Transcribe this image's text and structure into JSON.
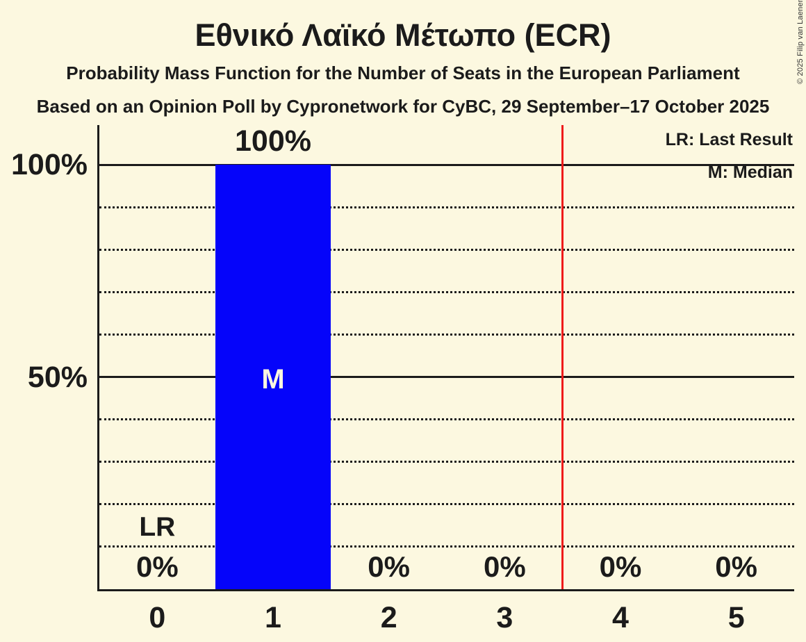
{
  "header": {
    "title": "Εθνικό Λαϊκό Μέτωπο (ECR)",
    "subtitle": "Probability Mass Function for the Number of Seats in the European Parliament",
    "source_line": "Based on an Opinion Poll by Cypronetwork for CyBC, 29 September–17 October 2025"
  },
  "copyright": "© 2025 Filip van Laenen",
  "legend": {
    "lr_label": "LR: Last Result",
    "m_label": "M: Median"
  },
  "chart_data": {
    "type": "bar",
    "title": "Εθνικό Λαϊκό Μέτωπο (ECR)",
    "xlabel": "",
    "ylabel": "",
    "categories": [
      "0",
      "1",
      "2",
      "3",
      "4",
      "5"
    ],
    "values": [
      0,
      100,
      0,
      0,
      0,
      0
    ],
    "value_labels": [
      "0%",
      "100%",
      "0%",
      "0%",
      "0%",
      "0%"
    ],
    "ylim": [
      0,
      100
    ],
    "ytick_pcts": [
      100,
      50
    ],
    "ytick_labels": [
      "100%",
      "50%"
    ],
    "solid_grid_pcts": [
      100,
      50
    ],
    "dotted_grid_pcts": [
      90,
      80,
      70,
      60,
      40,
      30,
      20,
      10
    ],
    "grid": "on",
    "legend_position": "top-right",
    "median_category": "1",
    "median_marker": "M",
    "last_result_category": "0",
    "last_result_marker": "LR",
    "majority_line_x": 3.5,
    "colors": {
      "bar": "#0504fa",
      "majority_line": "#ee1b1b",
      "background": "#fcf8e0",
      "text": "#1b1b1b",
      "median_text": "#fcf6e0"
    }
  }
}
